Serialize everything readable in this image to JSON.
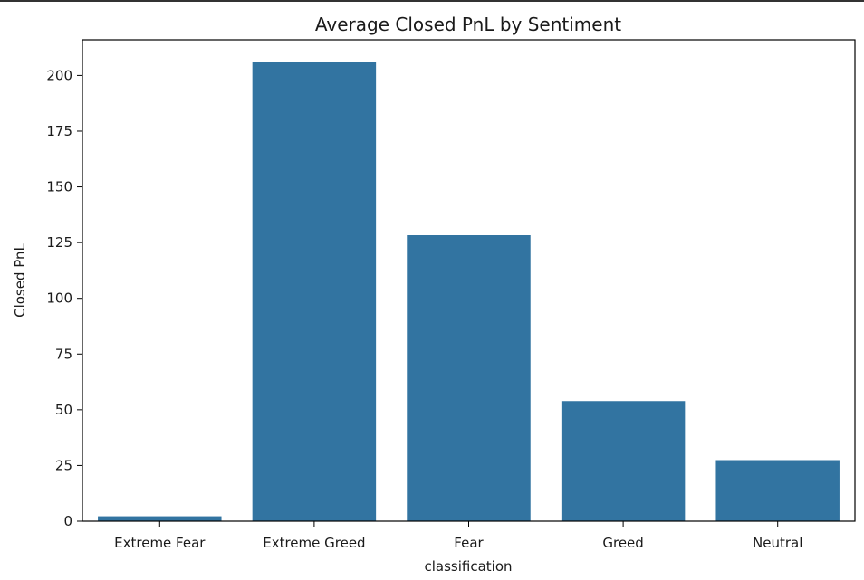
{
  "chart_data": {
    "type": "bar",
    "title": "Average Closed PnL by Sentiment",
    "xlabel": "classification",
    "ylabel": "Closed PnL",
    "categories": [
      "Extreme Fear",
      "Extreme Greed",
      "Fear",
      "Greed",
      "Neutral"
    ],
    "values": [
      2.2,
      206.0,
      128.3,
      53.9,
      27.4
    ],
    "ylim": [
      0,
      216
    ],
    "yticks": [
      0,
      25,
      50,
      75,
      100,
      125,
      150,
      175,
      200
    ],
    "bar_color": "#3274a1",
    "grid": false,
    "legend": "none"
  }
}
